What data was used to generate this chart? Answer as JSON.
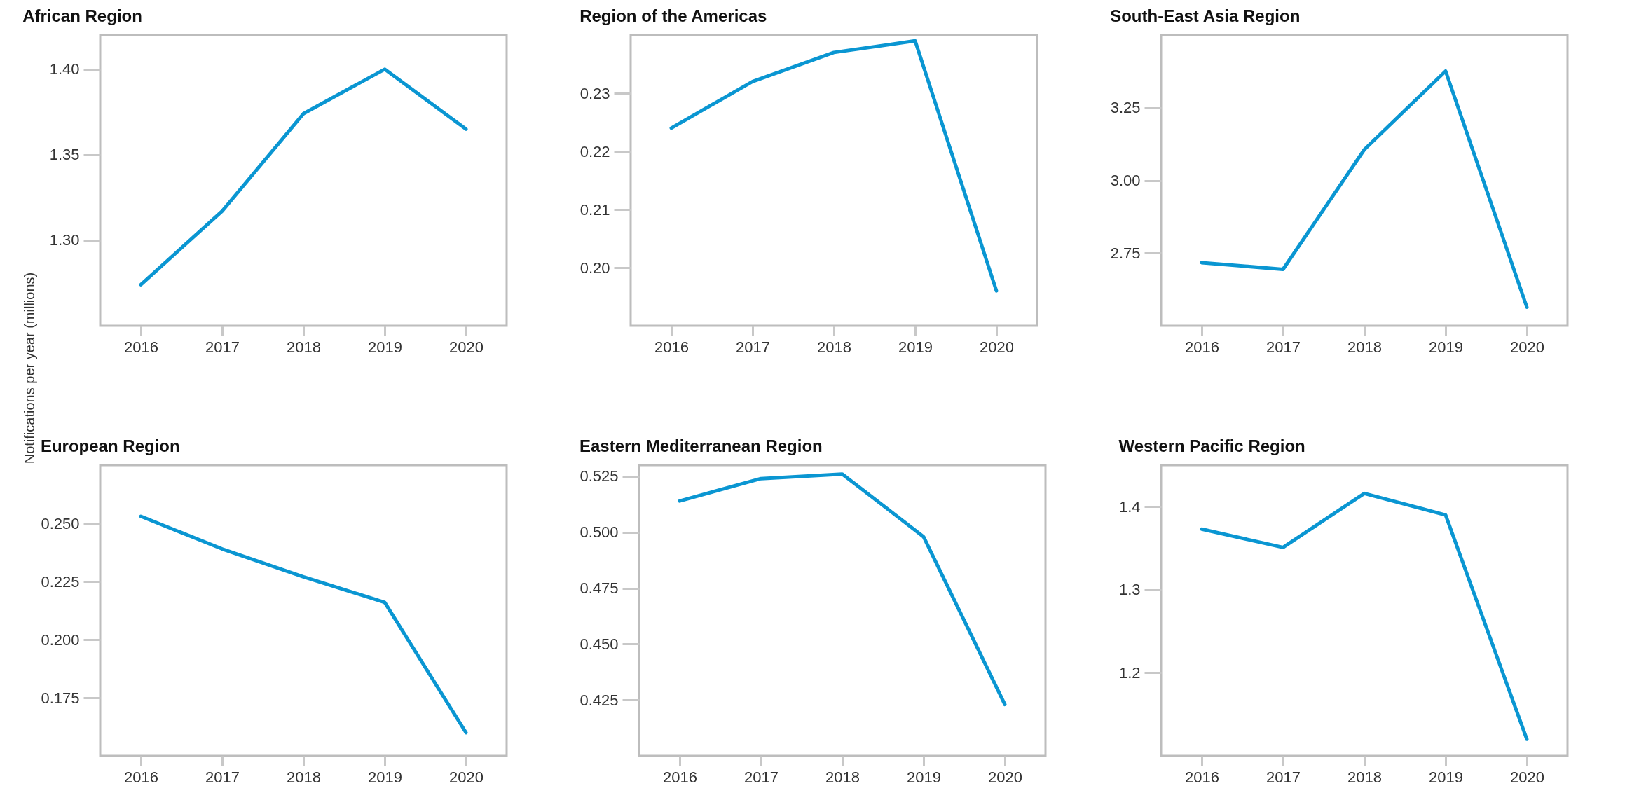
{
  "chart_data": [
    {
      "type": "line",
      "title": "African Region",
      "ylabel": "Notifications per year (millions)",
      "x": [
        2016,
        2017,
        2018,
        2019,
        2020
      ],
      "xlim": [
        2015.5,
        2020.5
      ],
      "xticks": [
        2016,
        2017,
        2018,
        2019,
        2020
      ],
      "ylim": [
        1.25,
        1.42
      ],
      "yticks": [
        {
          "value": 1.3,
          "label": "1.30"
        },
        1.35,
        {
          "value": 1.4,
          "label": "1.40"
        }
      ],
      "series": [
        {
          "color": "#0a96d2",
          "values": [
            1.274,
            1.317,
            1.374,
            1.4,
            1.365
          ]
        }
      ]
    },
    {
      "type": "line",
      "title": "Region of the Americas",
      "x": [
        2016,
        2017,
        2018,
        2019,
        2020
      ],
      "xlim": [
        2015.5,
        2020.5
      ],
      "xticks": [
        2016,
        2017,
        2018,
        2019,
        2020
      ],
      "ylim": [
        0.19,
        0.24
      ],
      "yticks": [
        {
          "value": 0.2,
          "label": "0.20"
        },
        0.21,
        0.22,
        0.23
      ],
      "series": [
        {
          "color": "#0a96d2",
          "values": [
            0.224,
            0.232,
            0.237,
            0.239,
            0.196
          ]
        }
      ]
    },
    {
      "type": "line",
      "title": "South-East Asia Region",
      "x": [
        2016,
        2017,
        2018,
        2019,
        2020
      ],
      "xlim": [
        2015.5,
        2020.5
      ],
      "xticks": [
        2016,
        2017,
        2018,
        2019,
        2020
      ],
      "ylim": [
        2.5,
        3.5
      ],
      "yticks": [
        2.75,
        {
          "value": 3,
          "label": "3.00"
        },
        3.25
      ],
      "series": [
        {
          "color": "#0a96d2",
          "values": [
            2.717,
            2.694,
            3.106,
            3.376,
            2.564
          ]
        }
      ]
    },
    {
      "type": "line",
      "title": "European Region",
      "x": [
        2016,
        2017,
        2018,
        2019,
        2020
      ],
      "xlim": [
        2015.5,
        2020.5
      ],
      "xticks": [
        2016,
        2017,
        2018,
        2019,
        2020
      ],
      "ylim": [
        0.15,
        0.275
      ],
      "yticks": [
        0.175,
        {
          "value": 0.2,
          "label": "0.200"
        },
        0.225,
        {
          "value": 0.25,
          "label": "0.250"
        }
      ],
      "series": [
        {
          "color": "#0a96d2",
          "values": [
            0.253,
            0.239,
            0.227,
            0.216,
            0.16
          ]
        }
      ]
    },
    {
      "type": "line",
      "title": "Eastern Mediterranean Region",
      "x": [
        2016,
        2017,
        2018,
        2019,
        2020
      ],
      "xlim": [
        2015.5,
        2020.5
      ],
      "xticks": [
        2016,
        2017,
        2018,
        2019,
        2020
      ],
      "ylim": [
        0.4,
        0.53
      ],
      "yticks": [
        0.425,
        {
          "value": 0.45,
          "label": "0.450"
        },
        0.475,
        {
          "value": 0.5,
          "label": "0.500"
        },
        0.525
      ],
      "series": [
        {
          "color": "#0a96d2",
          "values": [
            0.514,
            0.524,
            0.526,
            0.498,
            0.423
          ]
        }
      ]
    },
    {
      "type": "line",
      "title": "Western Pacific Region",
      "x": [
        2016,
        2017,
        2018,
        2019,
        2020
      ],
      "xlim": [
        2015.5,
        2020.5
      ],
      "xticks": [
        2016,
        2017,
        2018,
        2019,
        2020
      ],
      "ylim": [
        1.1,
        1.45
      ],
      "yticks": [
        1.2,
        1.3,
        1.4
      ],
      "series": [
        {
          "color": "#0a96d2",
          "values": [
            1.373,
            1.351,
            1.416,
            1.39,
            1.12
          ]
        }
      ]
    }
  ]
}
